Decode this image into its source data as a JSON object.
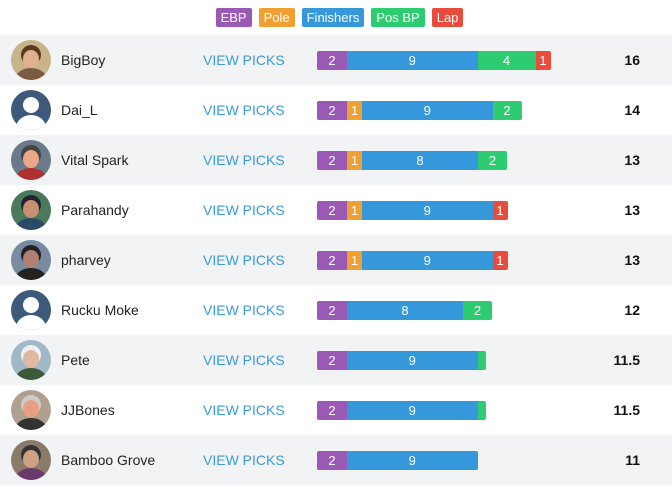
{
  "colors": {
    "ebp": "#9b59b6",
    "pole": "#f0a030",
    "finishers": "#3498db",
    "posbp": "#2ecc71",
    "lap": "#e74c3c",
    "link": "#3a9ad9",
    "row_alt": "#f2f3f5"
  },
  "legend": [
    {
      "key": "ebp",
      "label": "EBP"
    },
    {
      "key": "pole",
      "label": "Pole"
    },
    {
      "key": "finishers",
      "label": "Finishers"
    },
    {
      "key": "posbp",
      "label": "Pos BP"
    },
    {
      "key": "lap",
      "label": "Lap"
    }
  ],
  "view_picks_label": "VIEW PICKS",
  "rows": [
    {
      "name": "BigBoy",
      "avatar": "photo-bigboy",
      "total": "16",
      "segments": [
        {
          "key": "ebp",
          "value": 2
        },
        {
          "key": "finishers",
          "value": 9
        },
        {
          "key": "posbp",
          "value": 4
        },
        {
          "key": "lap",
          "value": 1
        }
      ]
    },
    {
      "name": "Dai_L",
      "avatar": "default-user",
      "total": "14",
      "segments": [
        {
          "key": "ebp",
          "value": 2
        },
        {
          "key": "pole",
          "value": 1
        },
        {
          "key": "finishers",
          "value": 9
        },
        {
          "key": "posbp",
          "value": 2
        }
      ]
    },
    {
      "name": "Vital Spark",
      "avatar": "photo-vital-spark",
      "total": "13",
      "segments": [
        {
          "key": "ebp",
          "value": 2
        },
        {
          "key": "pole",
          "value": 1
        },
        {
          "key": "finishers",
          "value": 8
        },
        {
          "key": "posbp",
          "value": 2
        }
      ]
    },
    {
      "name": "Parahandy",
      "avatar": "photo-parahandy",
      "total": "13",
      "segments": [
        {
          "key": "ebp",
          "value": 2
        },
        {
          "key": "pole",
          "value": 1
        },
        {
          "key": "finishers",
          "value": 9
        },
        {
          "key": "lap",
          "value": 1
        }
      ]
    },
    {
      "name": "pharvey",
      "avatar": "photo-pharvey",
      "total": "13",
      "segments": [
        {
          "key": "ebp",
          "value": 2
        },
        {
          "key": "pole",
          "value": 1
        },
        {
          "key": "finishers",
          "value": 9
        },
        {
          "key": "lap",
          "value": 1
        }
      ]
    },
    {
      "name": "Rucku Moke",
      "avatar": "default-user",
      "total": "12",
      "segments": [
        {
          "key": "ebp",
          "value": 2
        },
        {
          "key": "finishers",
          "value": 8
        },
        {
          "key": "posbp",
          "value": 2
        }
      ]
    },
    {
      "name": "Pete",
      "avatar": "photo-pete",
      "total": "11.5",
      "segments": [
        {
          "key": "ebp",
          "value": 2
        },
        {
          "key": "finishers",
          "value": 9
        },
        {
          "key": "posbp",
          "value": 0.5,
          "hide_label": true
        }
      ]
    },
    {
      "name": "JJBones",
      "avatar": "photo-jjbones",
      "total": "11.5",
      "segments": [
        {
          "key": "ebp",
          "value": 2
        },
        {
          "key": "finishers",
          "value": 9
        },
        {
          "key": "posbp",
          "value": 0.5,
          "hide_label": true
        }
      ]
    },
    {
      "name": "Bamboo Grove",
      "avatar": "photo-bamboo-grove",
      "total": "11",
      "segments": [
        {
          "key": "ebp",
          "value": 2
        },
        {
          "key": "finishers",
          "value": 9
        }
      ]
    }
  ]
}
